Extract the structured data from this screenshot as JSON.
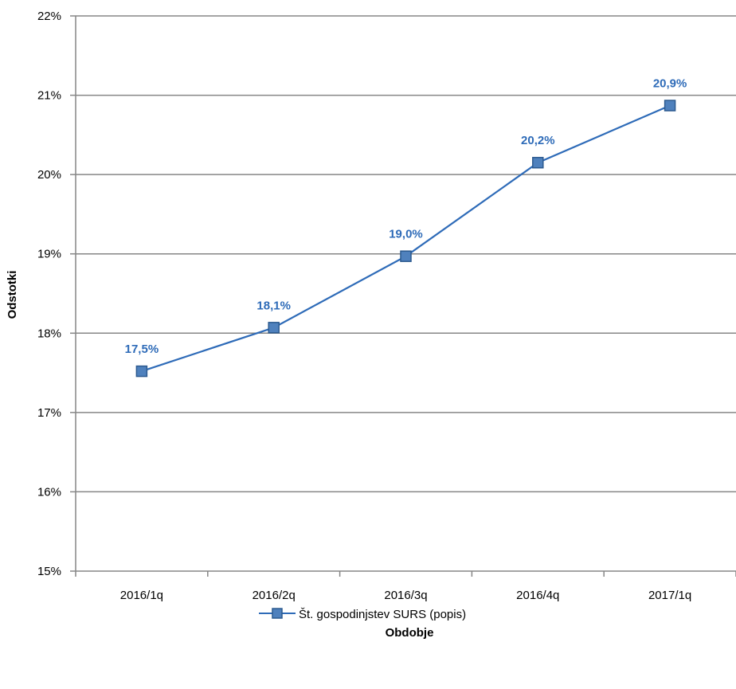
{
  "chart_data": {
    "type": "line",
    "categories": [
      "2016/1q",
      "2016/2q",
      "2016/3q",
      "2016/4q",
      "2017/1q"
    ],
    "series": [
      {
        "name": "Št. gospodinjstev SURS (popis)",
        "values": [
          17.52,
          18.07,
          18.97,
          20.15,
          20.87
        ],
        "labels": [
          "17,5%",
          "18,1%",
          "19,0%",
          "20,2%",
          "20,9%"
        ],
        "color": "#2E6BB8",
        "marker_fill": "#4F81BD",
        "marker_stroke": "#2C5A8F"
      }
    ],
    "xlabel": "Obdobje",
    "ylabel": "Odstotki",
    "ylim": [
      15,
      22
    ],
    "yticks": [
      15,
      16,
      17,
      18,
      19,
      20,
      21,
      22
    ],
    "ytick_labels": [
      "15%",
      "16%",
      "17%",
      "18%",
      "19%",
      "20%",
      "21%",
      "22%"
    ],
    "grid": true,
    "legend_position": "bottom"
  }
}
